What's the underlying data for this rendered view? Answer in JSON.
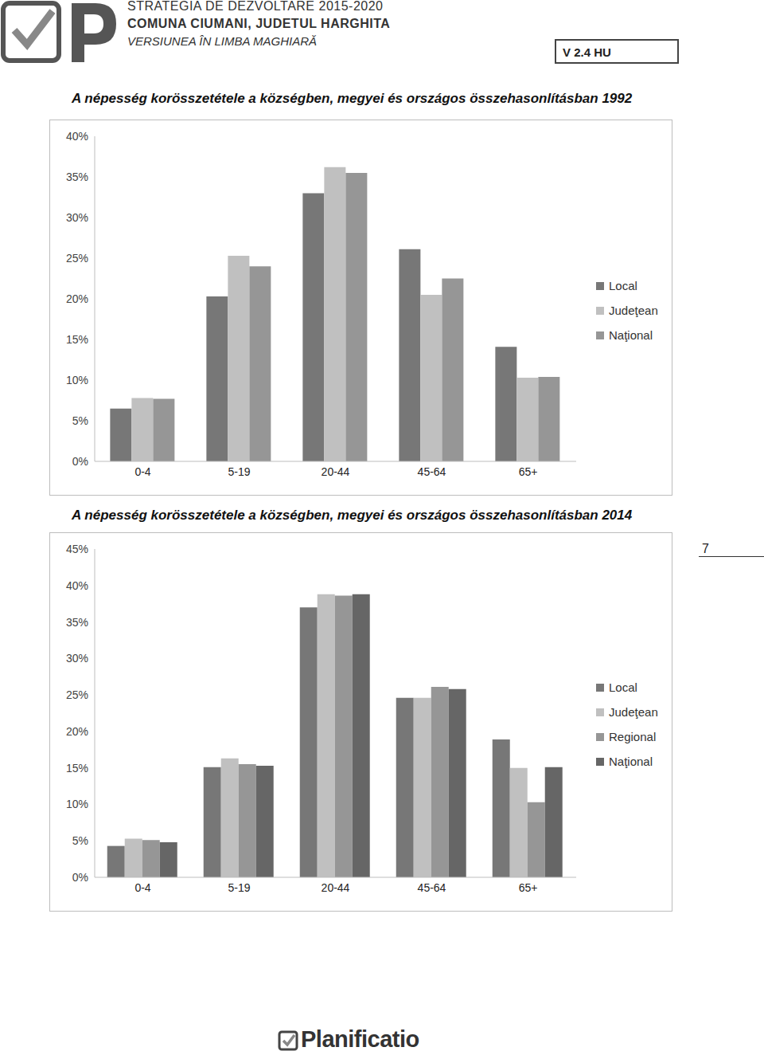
{
  "header": {
    "line1": "STRATEGIA DE DEZVOLTARE 2015-2020",
    "line2": "COMUNA CIUMANI, JUDETUL HARGHITA",
    "line3": "VERSIUNEA ÎN LIMBA MAGHIARĂ",
    "version": "V 2.4 HU"
  },
  "chart_data": [
    {
      "type": "bar",
      "title": "A népesség korösszetétele a községben, megyei és országos összehasonlításban 1992",
      "categories": [
        "0-4",
        "5-19",
        "20-44",
        "45-64",
        "65+"
      ],
      "series": [
        {
          "name": "Local",
          "color": "#777777",
          "values": [
            6.5,
            20.3,
            33,
            26.1,
            14.1
          ]
        },
        {
          "name": "Judeţean",
          "color": "#c0c0c0",
          "values": [
            7.8,
            25.3,
            36.2,
            20.5,
            10.3
          ]
        },
        {
          "name": "Naţional",
          "color": "#969696",
          "values": [
            7.7,
            24,
            35.5,
            22.5,
            10.4
          ]
        }
      ],
      "ylim": [
        0,
        40
      ],
      "yticks": [
        {
          "value": 0,
          "label": "0%"
        },
        {
          "value": 5,
          "label": "5%"
        },
        {
          "value": 10,
          "label": "10%"
        },
        {
          "value": 15,
          "label": "15%"
        },
        {
          "value": 20,
          "label": "20%"
        },
        {
          "value": 25,
          "label": "25%"
        },
        {
          "value": 30,
          "label": "30%"
        },
        {
          "value": 35,
          "label": "35%"
        },
        {
          "value": 40,
          "label": "40%"
        }
      ],
      "grid": false,
      "legend": "right"
    },
    {
      "type": "bar",
      "title": "A népesség korösszetétele a községben, megyei és országos összehasonlításban 2014",
      "categories": [
        "0-4",
        "5-19",
        "20-44",
        "45-64",
        "65+"
      ],
      "series": [
        {
          "name": "Local",
          "color": "#777777",
          "values": [
            4.3,
            15.1,
            37,
            24.6,
            18.9
          ]
        },
        {
          "name": "Judeţean",
          "color": "#c0c0c0",
          "values": [
            5.3,
            16.3,
            38.8,
            24.6,
            15
          ]
        },
        {
          "name": "Regional",
          "color": "#969696",
          "values": [
            5.1,
            15.5,
            38.6,
            26.1,
            10.3
          ]
        },
        {
          "name": "Naţional",
          "color": "#666666",
          "values": [
            4.8,
            15.3,
            38.8,
            25.8,
            15.1
          ]
        }
      ],
      "ylim": [
        0,
        45
      ],
      "yticks": [
        {
          "value": 0,
          "label": "0%"
        },
        {
          "value": 5,
          "label": "5%"
        },
        {
          "value": 10,
          "label": "10%"
        },
        {
          "value": 15,
          "label": "15%"
        },
        {
          "value": 20,
          "label": "20%"
        },
        {
          "value": 25,
          "label": "25%"
        },
        {
          "value": 30,
          "label": "30%"
        },
        {
          "value": 35,
          "label": "35%"
        },
        {
          "value": 40,
          "label": "40%"
        },
        {
          "value": 45,
          "label": "45%"
        }
      ],
      "grid": false,
      "legend": "right"
    }
  ],
  "page_number": "7",
  "footer": "Planificatio"
}
